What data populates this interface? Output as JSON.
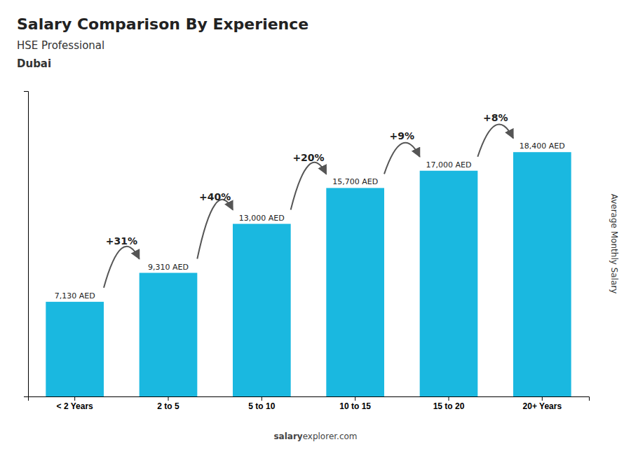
{
  "chart_data": {
    "type": "bar",
    "title": "Salary Comparison By Experience",
    "subtitle": "HSE Professional",
    "location": "Dubai",
    "categories": [
      "< 2 Years",
      "2 to 5",
      "5 to 10",
      "10 to 15",
      "15 to 20",
      "20+ Years"
    ],
    "values": [
      7130,
      9310,
      13000,
      15700,
      17000,
      18400
    ],
    "value_labels": [
      "7,130 AED",
      "9,310 AED",
      "13,000 AED",
      "15,700 AED",
      "17,000 AED",
      "18,400 AED"
    ],
    "data_labels": true,
    "annotations": [
      "+31%",
      "+40%",
      "+20%",
      "+9%",
      "+8%"
    ],
    "y_label": "Average Monthly Salary",
    "watermark": [
      "salary",
      "explorer.com"
    ],
    "color": "#1ab8e0",
    "ylim": [
      0,
      23000
    ],
    "tick_labels": "x",
    "grid": false
  }
}
